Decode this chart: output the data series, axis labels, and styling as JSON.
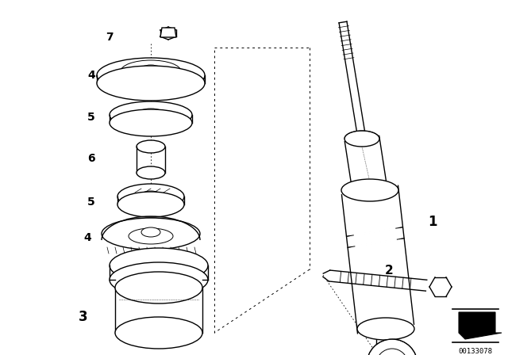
{
  "bg_color": "#ffffff",
  "line_color": "#000000",
  "fig_width": 6.4,
  "fig_height": 4.48,
  "dpi": 100,
  "diagram_code": "00133078"
}
